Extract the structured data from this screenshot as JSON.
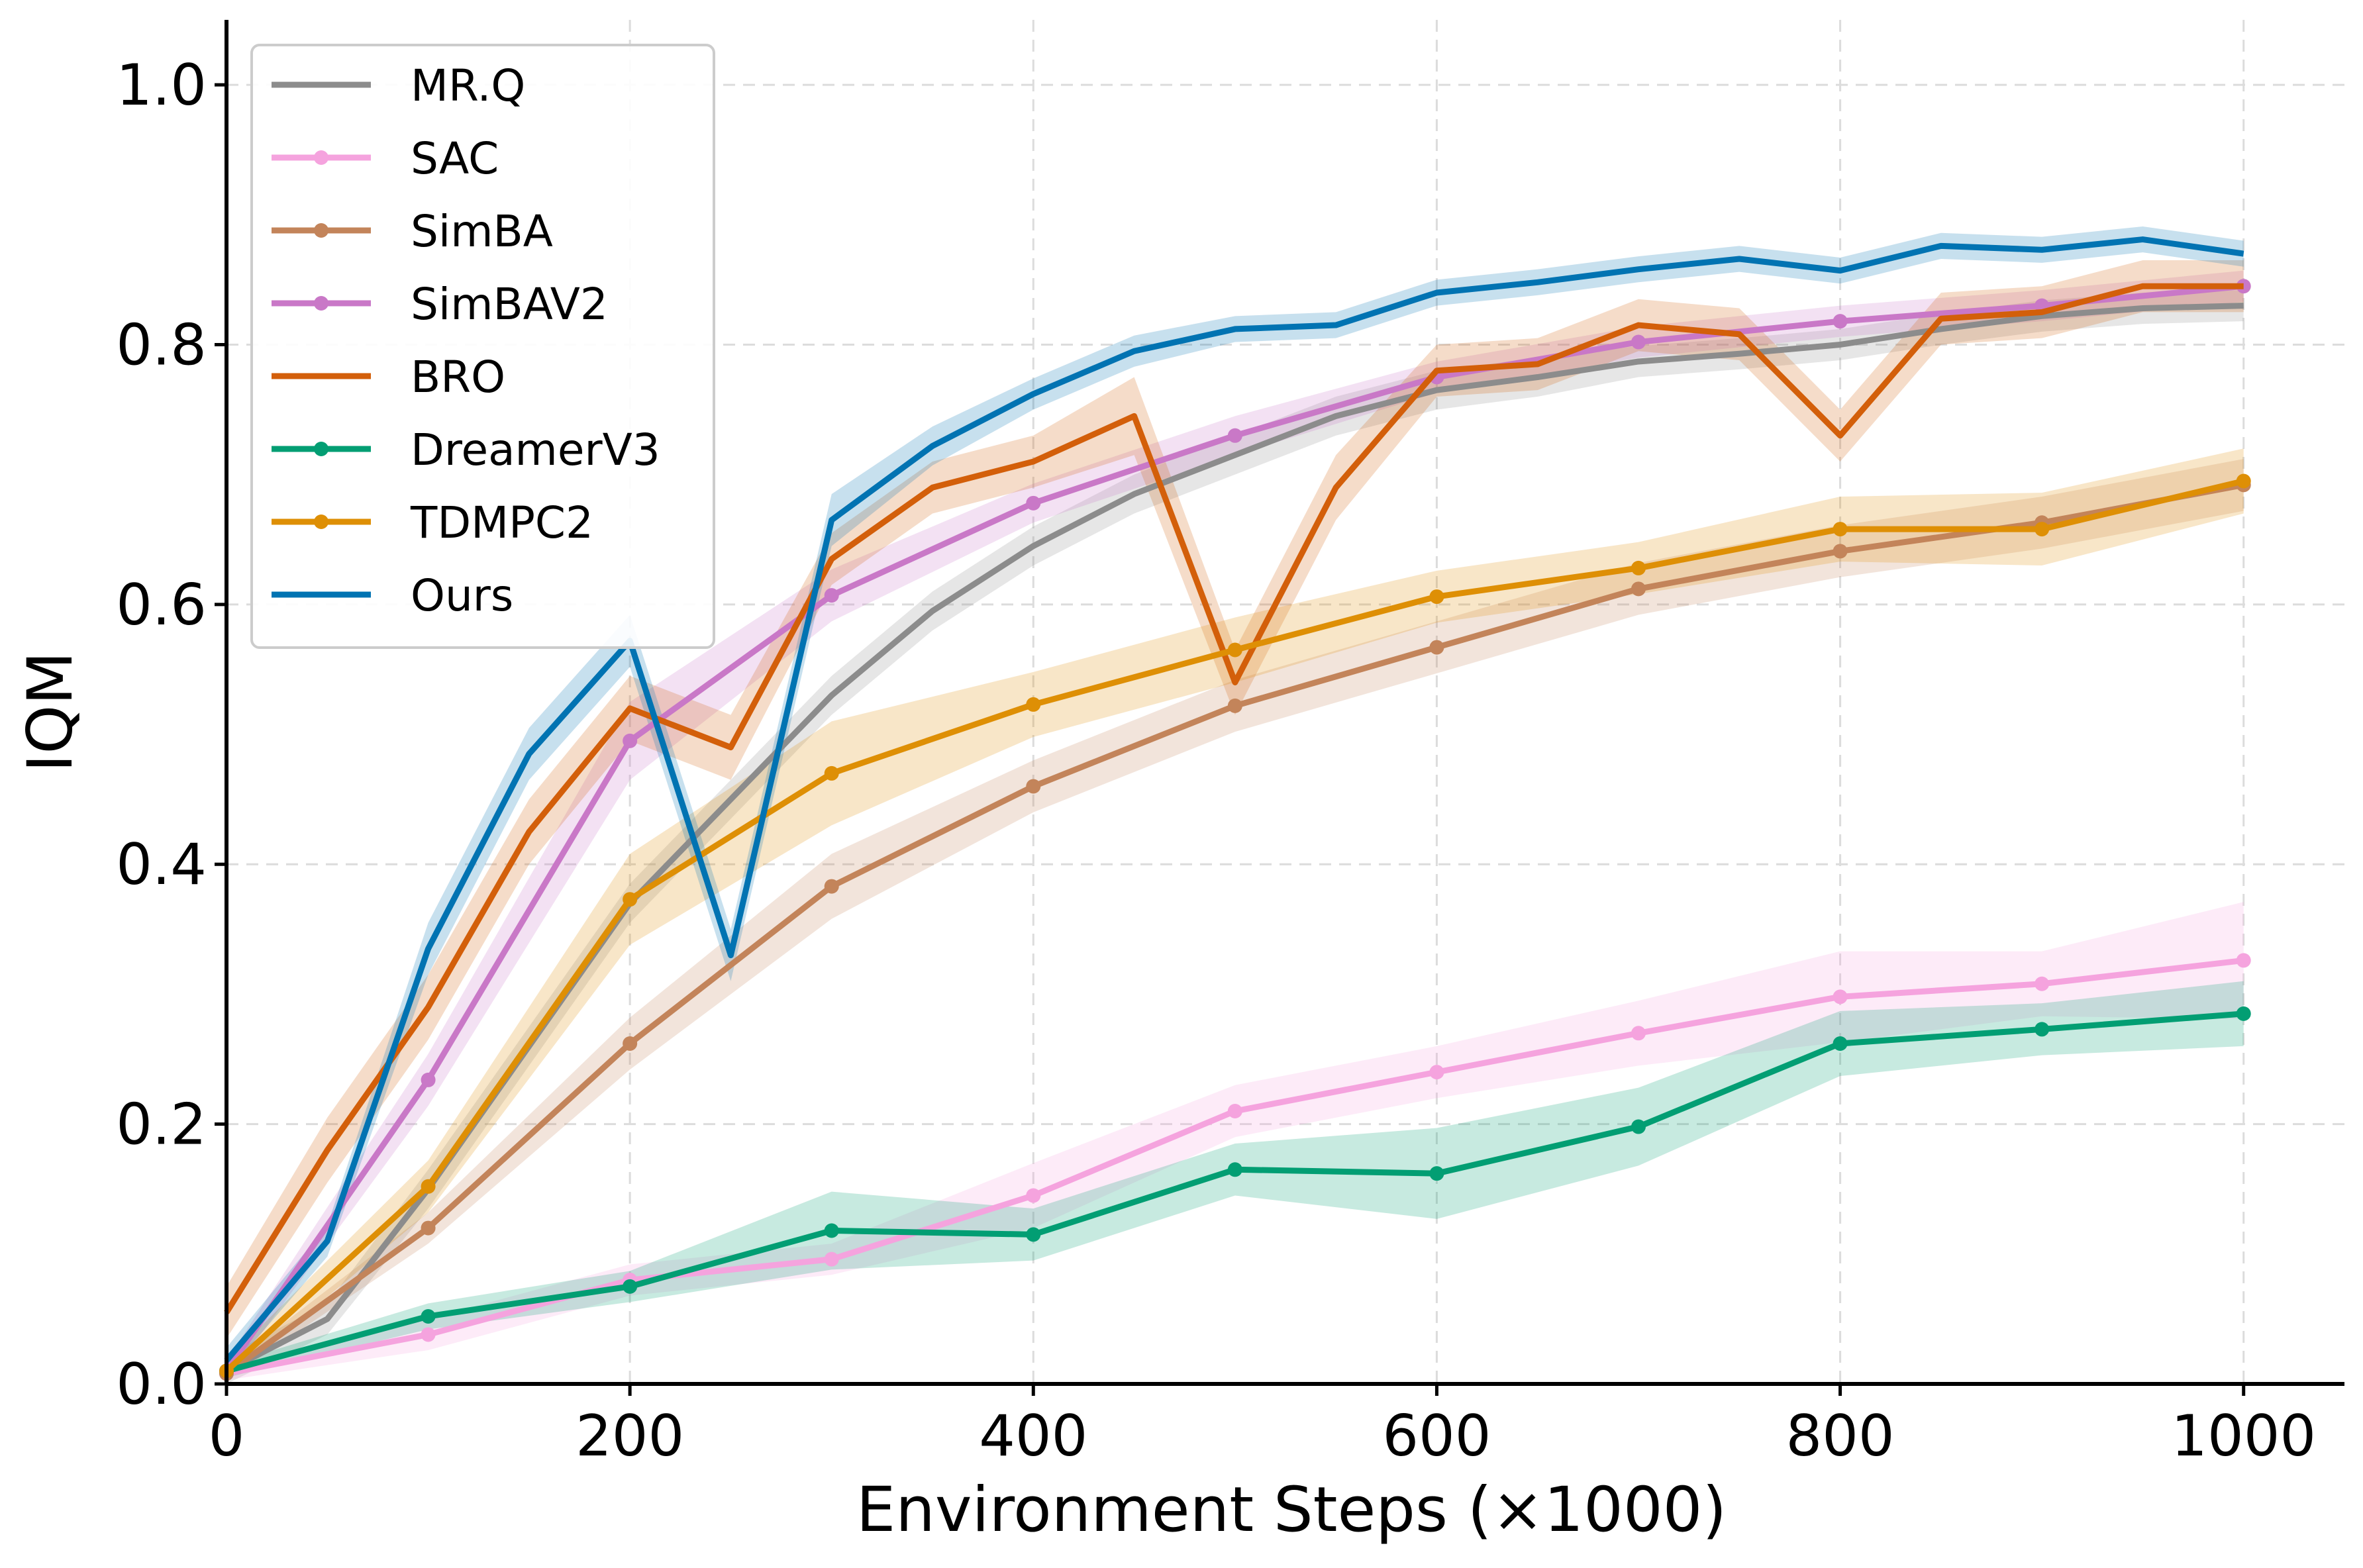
{
  "chart_data": {
    "type": "line",
    "xlabel": "Environment Steps (×1000)",
    "ylabel": "IQM",
    "xlim": [
      0,
      1050
    ],
    "ylim": [
      0,
      1.05
    ],
    "x_ticks": [
      0,
      200,
      400,
      600,
      800,
      1000
    ],
    "y_ticks": [
      0.0,
      0.2,
      0.4,
      0.6,
      0.8,
      1.0
    ],
    "x_tick_labels": [
      "0",
      "200",
      "400",
      "600",
      "800",
      "1000"
    ],
    "y_tick_labels": [
      "0.0",
      "0.2",
      "0.4",
      "0.6",
      "0.8",
      "1.0"
    ],
    "grid": true,
    "legend_position": "top-left",
    "series": [
      {
        "name": "MR.Q",
        "color": "#8c8c8c",
        "markers": false,
        "x": [
          0,
          50,
          100,
          150,
          200,
          250,
          300,
          350,
          400,
          450,
          500,
          550,
          600,
          650,
          700,
          750,
          800,
          850,
          900,
          950,
          1000
        ],
        "y": [
          0.01,
          0.05,
          0.15,
          0.26,
          0.37,
          0.45,
          0.53,
          0.595,
          0.645,
          0.685,
          0.715,
          0.745,
          0.765,
          0.775,
          0.787,
          0.793,
          0.8,
          0.812,
          0.822,
          0.828,
          0.83
        ],
        "band": [
          0.012,
          0.012,
          0.015,
          0.015,
          0.015,
          0.015,
          0.015,
          0.015,
          0.015,
          0.015,
          0.015,
          0.015,
          0.015,
          0.015,
          0.012,
          0.012,
          0.012,
          0.012,
          0.012,
          0.012,
          0.012
        ]
      },
      {
        "name": "SAC",
        "color": "#f5a3de",
        "markers": true,
        "x": [
          0,
          100,
          200,
          300,
          400,
          500,
          600,
          700,
          800,
          900,
          1000
        ],
        "y": [
          0.008,
          0.038,
          0.08,
          0.096,
          0.145,
          0.21,
          0.24,
          0.27,
          0.298,
          0.308,
          0.326
        ],
        "band": [
          0.005,
          0.012,
          0.012,
          0.012,
          0.025,
          0.02,
          0.02,
          0.025,
          0.035,
          0.025,
          0.045
        ]
      },
      {
        "name": "SimBA",
        "color": "#c3845a",
        "markers": true,
        "x": [
          0,
          100,
          200,
          300,
          400,
          500,
          600,
          700,
          800,
          900,
          1000
        ],
        "y": [
          0.008,
          0.12,
          0.262,
          0.383,
          0.46,
          0.522,
          0.567,
          0.612,
          0.641,
          0.663,
          0.692
        ],
        "band": [
          0.005,
          0.012,
          0.02,
          0.025,
          0.02,
          0.02,
          0.02,
          0.02,
          0.02,
          0.02,
          0.02
        ]
      },
      {
        "name": "SimBAV2",
        "color": "#c978c7",
        "markers": true,
        "x": [
          0,
          100,
          200,
          300,
          400,
          500,
          600,
          700,
          800,
          900,
          1000
        ],
        "y": [
          0.01,
          0.234,
          0.495,
          0.607,
          0.678,
          0.73,
          0.775,
          0.802,
          0.818,
          0.83,
          0.845
        ],
        "band": [
          0.008,
          0.02,
          0.03,
          0.02,
          0.015,
          0.015,
          0.012,
          0.012,
          0.012,
          0.012,
          0.012
        ]
      },
      {
        "name": "BRO",
        "color": "#d35f0a",
        "markers": false,
        "x": [
          0,
          50,
          100,
          150,
          200,
          250,
          300,
          350,
          400,
          450,
          500,
          550,
          600,
          650,
          700,
          750,
          800,
          850,
          900,
          950,
          1000
        ],
        "y": [
          0.055,
          0.18,
          0.29,
          0.425,
          0.52,
          0.49,
          0.635,
          0.69,
          0.71,
          0.745,
          0.54,
          0.69,
          0.78,
          0.785,
          0.815,
          0.808,
          0.73,
          0.82,
          0.825,
          0.845,
          0.845
        ],
        "band": [
          0.02,
          0.025,
          0.025,
          0.025,
          0.025,
          0.025,
          0.02,
          0.02,
          0.02,
          0.03,
          0.025,
          0.025,
          0.02,
          0.02,
          0.02,
          0.02,
          0.02,
          0.02,
          0.02,
          0.02,
          0.02
        ]
      },
      {
        "name": "DreamerV3",
        "color": "#029e73",
        "markers": true,
        "x": [
          0,
          100,
          200,
          300,
          400,
          500,
          600,
          700,
          800,
          900,
          1000
        ],
        "y": [
          0.01,
          0.052,
          0.075,
          0.118,
          0.115,
          0.165,
          0.162,
          0.198,
          0.262,
          0.273,
          0.285
        ],
        "band": [
          0.005,
          0.01,
          0.012,
          0.03,
          0.02,
          0.02,
          0.035,
          0.03,
          0.025,
          0.02,
          0.025
        ]
      },
      {
        "name": "TDMPC2",
        "color": "#de8f05",
        "markers": true,
        "x": [
          0,
          100,
          200,
          300,
          400,
          500,
          600,
          700,
          800,
          900,
          1000
        ],
        "y": [
          0.01,
          0.152,
          0.373,
          0.47,
          0.523,
          0.565,
          0.606,
          0.628,
          0.658,
          0.658,
          0.695
        ],
        "band": [
          0.008,
          0.02,
          0.035,
          0.04,
          0.025,
          0.025,
          0.02,
          0.02,
          0.025,
          0.028,
          0.025
        ]
      },
      {
        "name": "Ours",
        "color": "#0173b2",
        "markers": false,
        "x": [
          0,
          50,
          100,
          150,
          200,
          250,
          300,
          350,
          400,
          450,
          500,
          550,
          600,
          650,
          700,
          750,
          800,
          850,
          900,
          950,
          1000
        ],
        "y": [
          0.018,
          0.11,
          0.335,
          0.485,
          0.572,
          0.33,
          0.665,
          0.722,
          0.762,
          0.795,
          0.812,
          0.815,
          0.84,
          0.848,
          0.858,
          0.866,
          0.857,
          0.876,
          0.873,
          0.881,
          0.87
        ],
        "band": [
          0.01,
          0.012,
          0.02,
          0.02,
          0.02,
          0.02,
          0.02,
          0.015,
          0.012,
          0.012,
          0.01,
          0.01,
          0.01,
          0.01,
          0.01,
          0.01,
          0.01,
          0.01,
          0.01,
          0.01,
          0.01
        ]
      }
    ]
  }
}
